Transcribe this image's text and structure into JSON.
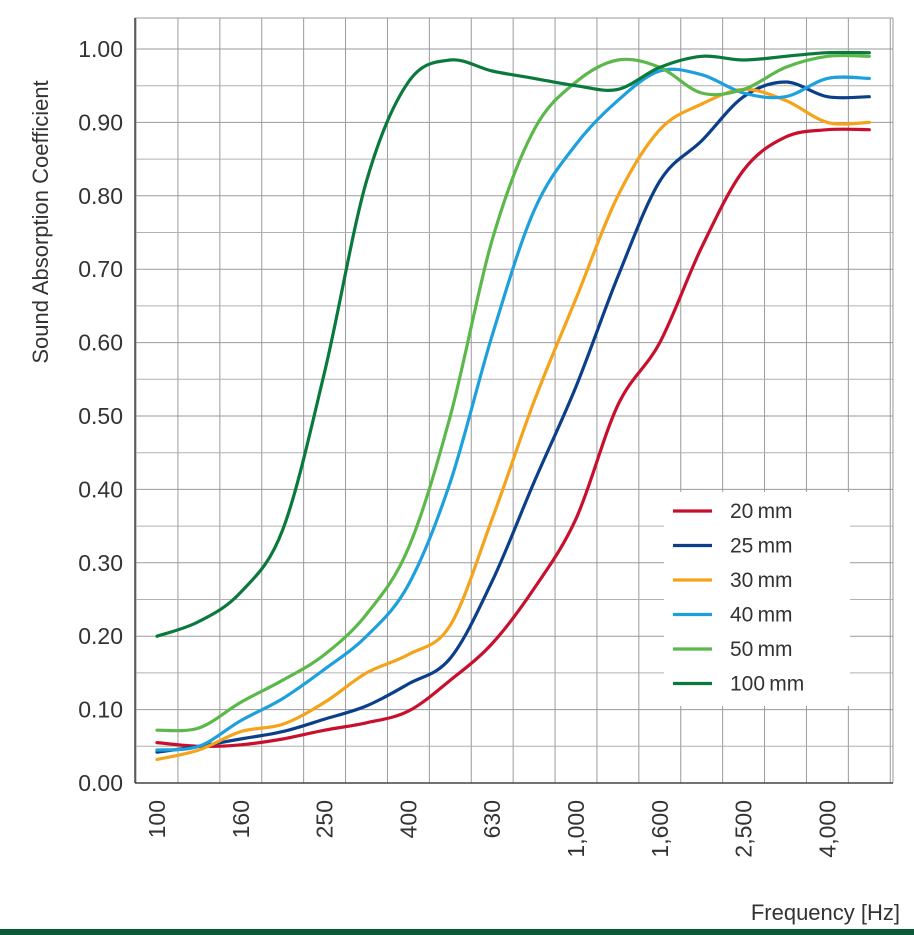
{
  "chart_data": {
    "type": "line",
    "ylabel": "Sound Absorption Coefficient",
    "xlabel": "Frequency [Hz]",
    "x_scale": "log (1/3-octave bands)",
    "x": [
      100,
      125,
      160,
      200,
      250,
      315,
      400,
      500,
      630,
      800,
      1000,
      1250,
      1600,
      2000,
      2500,
      3150,
      4000,
      5000
    ],
    "x_tick_labels": [
      "100",
      "160",
      "250",
      "400",
      "630",
      "1,000",
      "1,600",
      "2,500",
      "4,000"
    ],
    "y_tick_labels": [
      "0.00",
      "0.10",
      "0.20",
      "0.30",
      "0.40",
      "0.50",
      "0.60",
      "0.70",
      "0.80",
      "0.90",
      "1.00"
    ],
    "ylim": [
      0,
      1
    ],
    "grid": true,
    "legend_position": "lower-right",
    "series": [
      {
        "name": "20 mm",
        "color": "#c8102e",
        "values": [
          0.055,
          0.05,
          0.052,
          0.06,
          0.072,
          0.082,
          0.098,
          0.14,
          0.19,
          0.265,
          0.36,
          0.515,
          0.6,
          0.73,
          0.835,
          0.88,
          0.89,
          0.89
        ]
      },
      {
        "name": "25 mm",
        "color": "#0b3f8a",
        "values": [
          0.042,
          0.05,
          0.06,
          0.07,
          0.087,
          0.105,
          0.135,
          0.17,
          0.275,
          0.41,
          0.54,
          0.69,
          0.82,
          0.875,
          0.935,
          0.955,
          0.935,
          0.935
        ]
      },
      {
        "name": "30 mm",
        "color": "#f5a31a",
        "values": [
          0.032,
          0.045,
          0.07,
          0.08,
          0.11,
          0.15,
          0.175,
          0.215,
          0.36,
          0.52,
          0.66,
          0.8,
          0.89,
          0.925,
          0.945,
          0.93,
          0.9,
          0.9
        ]
      },
      {
        "name": "40 mm",
        "color": "#1ea0dc",
        "values": [
          0.045,
          0.05,
          0.085,
          0.115,
          0.155,
          0.2,
          0.27,
          0.41,
          0.61,
          0.78,
          0.87,
          0.93,
          0.97,
          0.965,
          0.94,
          0.935,
          0.96,
          0.96
        ]
      },
      {
        "name": "50 mm",
        "color": "#5cb84a",
        "values": [
          0.072,
          0.075,
          0.11,
          0.14,
          0.175,
          0.23,
          0.32,
          0.5,
          0.74,
          0.89,
          0.955,
          0.985,
          0.975,
          0.94,
          0.945,
          0.975,
          0.99,
          0.99
        ]
      },
      {
        "name": "100 mm",
        "color": "#0a7a3c",
        "values": [
          0.2,
          0.22,
          0.26,
          0.345,
          0.56,
          0.82,
          0.955,
          0.985,
          0.97,
          0.96,
          0.95,
          0.945,
          0.975,
          0.99,
          0.985,
          0.99,
          0.995,
          0.995
        ]
      }
    ]
  }
}
